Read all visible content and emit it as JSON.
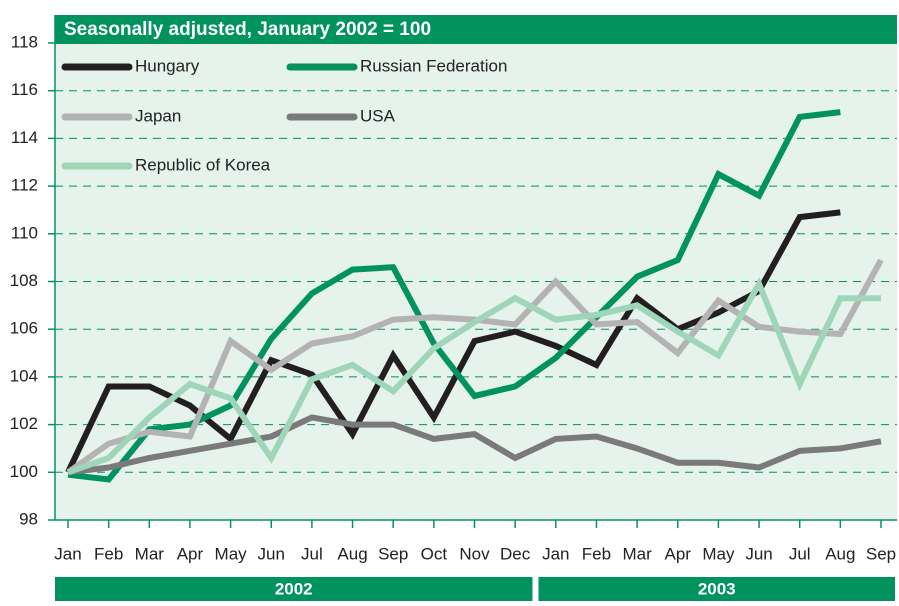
{
  "chart_data": {
    "type": "line",
    "title": "Seasonally adjusted, January 2002 = 100",
    "categories": [
      "Jan",
      "Feb",
      "Mar",
      "Apr",
      "May",
      "Jun",
      "Jul",
      "Aug",
      "Sep",
      "Oct",
      "Nov",
      "Dec",
      "Jan",
      "Feb",
      "Mar",
      "Apr",
      "May",
      "Jun",
      "Jul",
      "Aug",
      "Sep"
    ],
    "x_groups": [
      {
        "label": "2002",
        "span": 12
      },
      {
        "label": "2003",
        "span": 9
      }
    ],
    "ylim": [
      98,
      118
    ],
    "yticks": [
      98,
      100,
      102,
      104,
      106,
      108,
      110,
      112,
      114,
      116,
      118
    ],
    "grid": true,
    "series": [
      {
        "name": "Hungary",
        "color": "#231f20",
        "values": [
          100,
          103.6,
          103.6,
          102.8,
          101.4,
          104.7,
          104.1,
          101.6,
          104.9,
          102.3,
          105.5,
          105.9,
          105.3,
          104.5,
          107.3,
          106.0,
          106.7,
          107.6,
          110.7,
          110.9,
          null
        ]
      },
      {
        "name": "Russian Federation",
        "color": "#00935f",
        "values": [
          99.9,
          99.7,
          101.8,
          102.0,
          102.8,
          105.6,
          107.5,
          108.5,
          108.6,
          105.4,
          103.2,
          103.6,
          104.8,
          106.5,
          108.2,
          108.9,
          112.5,
          111.6,
          114.9,
          115.1,
          null
        ]
      },
      {
        "name": "Japan",
        "color": "#b3b3b3",
        "values": [
          100,
          101.2,
          101.7,
          101.5,
          105.5,
          104.3,
          105.4,
          105.7,
          106.4,
          106.5,
          106.4,
          106.2,
          108.0,
          106.2,
          106.3,
          105.0,
          107.2,
          106.1,
          105.9,
          105.8,
          108.9
        ]
      },
      {
        "name": "USA",
        "color": "#7a7a7a",
        "values": [
          100,
          100.2,
          100.6,
          100.9,
          101.2,
          101.5,
          102.3,
          102.0,
          102.0,
          101.4,
          101.6,
          100.6,
          101.4,
          101.5,
          101.0,
          100.4,
          100.4,
          100.2,
          100.9,
          101.0,
          101.3
        ]
      },
      {
        "name": "Republic of Korea",
        "color": "#9fd5b8",
        "values": [
          100,
          100.6,
          102.3,
          103.7,
          103.1,
          100.6,
          103.9,
          104.5,
          103.4,
          105.2,
          106.3,
          107.3,
          106.4,
          106.6,
          107.0,
          105.9,
          104.9,
          107.9,
          103.7,
          107.3,
          107.3
        ]
      }
    ]
  }
}
